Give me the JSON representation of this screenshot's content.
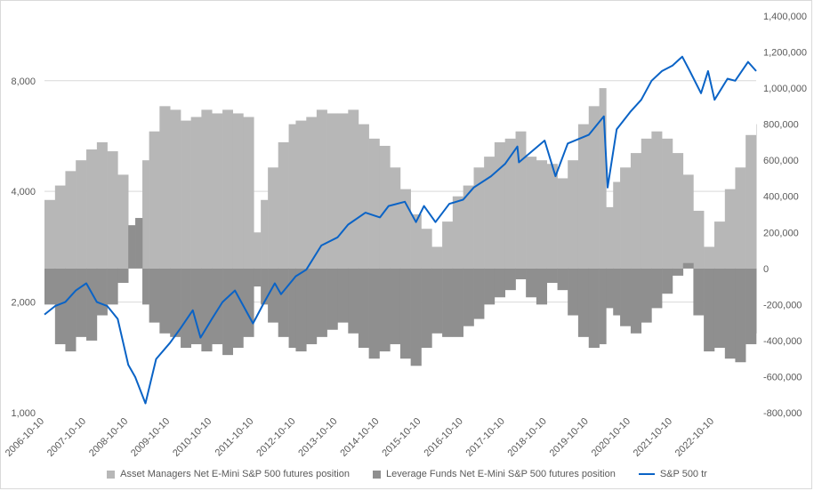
{
  "chart_data": {
    "type": "bar+line",
    "title": "",
    "xlabel": "",
    "ylabel": "",
    "y_left": {
      "scale": "log",
      "range": [
        1000,
        12000
      ],
      "ticks": [
        1000,
        2000,
        4000,
        8000
      ],
      "tick_labels": [
        "1,000",
        "2,000",
        "4,000",
        "8,000"
      ]
    },
    "y_right": {
      "range": [
        -800000,
        1400000
      ],
      "ticks": [
        -800000,
        -600000,
        -400000,
        -200000,
        0,
        200000,
        400000,
        600000,
        800000,
        1000000,
        1200000,
        1400000
      ],
      "tick_labels": [
        "-800,000",
        "-600,000",
        "-400,000",
        "-200,000",
        "0",
        "200,000",
        "400,000",
        "600,000",
        "800,000",
        "1,000,000",
        "1,200,000",
        "1,400,000"
      ]
    },
    "x_range": [
      "2006-10-10",
      "2023-10-10"
    ],
    "x_tick_labels": [
      "2006-10-10",
      "2007-10-10",
      "2008-10-10",
      "2009-10-10",
      "2010-10-10",
      "2011-10-10",
      "2012-10-10",
      "2013-10-10",
      "2014-10-10",
      "2015-10-10",
      "2016-10-10",
      "2017-10-10",
      "2018-10-10",
      "2019-10-10",
      "2020-10-10",
      "2021-10-10",
      "2022-10-10"
    ],
    "grid": "horizontal",
    "legend_position": "bottom",
    "series": [
      {
        "name": "Asset Managers Net E-Mini S&P 500 futures position",
        "kind": "bar",
        "axis": "right",
        "color": "#b7b7b7",
        "points": [
          [
            "2006-10-10",
            380000
          ],
          [
            "2007-01-10",
            460000
          ],
          [
            "2007-04-10",
            540000
          ],
          [
            "2007-07-10",
            600000
          ],
          [
            "2007-10-10",
            660000
          ],
          [
            "2008-01-10",
            700000
          ],
          [
            "2008-04-10",
            650000
          ],
          [
            "2008-07-10",
            520000
          ],
          [
            "2008-10-10",
            80000
          ],
          [
            "2008-12-10",
            50000
          ],
          [
            "2009-02-10",
            600000
          ],
          [
            "2009-04-10",
            760000
          ],
          [
            "2009-07-10",
            900000
          ],
          [
            "2009-10-10",
            880000
          ],
          [
            "2010-01-10",
            820000
          ],
          [
            "2010-04-10",
            840000
          ],
          [
            "2010-07-10",
            880000
          ],
          [
            "2010-10-10",
            860000
          ],
          [
            "2011-01-10",
            880000
          ],
          [
            "2011-04-10",
            860000
          ],
          [
            "2011-07-10",
            840000
          ],
          [
            "2011-10-10",
            200000
          ],
          [
            "2011-12-10",
            380000
          ],
          [
            "2012-02-10",
            560000
          ],
          [
            "2012-05-10",
            700000
          ],
          [
            "2012-08-10",
            800000
          ],
          [
            "2012-10-10",
            820000
          ],
          [
            "2013-01-10",
            840000
          ],
          [
            "2013-04-10",
            880000
          ],
          [
            "2013-07-10",
            860000
          ],
          [
            "2013-10-10",
            860000
          ],
          [
            "2014-01-10",
            880000
          ],
          [
            "2014-04-10",
            800000
          ],
          [
            "2014-07-10",
            720000
          ],
          [
            "2014-10-10",
            680000
          ],
          [
            "2015-01-10",
            560000
          ],
          [
            "2015-04-10",
            440000
          ],
          [
            "2015-07-10",
            300000
          ],
          [
            "2015-10-10",
            220000
          ],
          [
            "2016-01-10",
            120000
          ],
          [
            "2016-04-10",
            260000
          ],
          [
            "2016-07-10",
            400000
          ],
          [
            "2016-10-10",
            460000
          ],
          [
            "2017-01-10",
            560000
          ],
          [
            "2017-04-10",
            620000
          ],
          [
            "2017-07-10",
            700000
          ],
          [
            "2017-10-10",
            720000
          ],
          [
            "2018-01-10",
            760000
          ],
          [
            "2018-04-10",
            620000
          ],
          [
            "2018-07-10",
            600000
          ],
          [
            "2018-10-10",
            580000
          ],
          [
            "2019-01-10",
            500000
          ],
          [
            "2019-04-10",
            600000
          ],
          [
            "2019-07-10",
            800000
          ],
          [
            "2019-10-10",
            900000
          ],
          [
            "2020-01-10",
            1000000
          ],
          [
            "2020-03-10",
            340000
          ],
          [
            "2020-05-10",
            480000
          ],
          [
            "2020-07-10",
            560000
          ],
          [
            "2020-10-10",
            640000
          ],
          [
            "2021-01-10",
            720000
          ],
          [
            "2021-04-10",
            760000
          ],
          [
            "2021-07-10",
            720000
          ],
          [
            "2021-10-10",
            640000
          ],
          [
            "2022-01-10",
            520000
          ],
          [
            "2022-04-10",
            320000
          ],
          [
            "2022-07-10",
            120000
          ],
          [
            "2022-10-10",
            260000
          ],
          [
            "2023-01-10",
            440000
          ],
          [
            "2023-04-10",
            560000
          ],
          [
            "2023-07-10",
            740000
          ],
          [
            "2023-10-10",
            800000
          ]
        ]
      },
      {
        "name": "Leverage Funds Net E-Mini S&P 500 futures position",
        "kind": "bar",
        "axis": "right",
        "color": "#8f8f8f",
        "points": [
          [
            "2006-10-10",
            -200000
          ],
          [
            "2007-01-10",
            -420000
          ],
          [
            "2007-04-10",
            -460000
          ],
          [
            "2007-07-10",
            -380000
          ],
          [
            "2007-10-10",
            -400000
          ],
          [
            "2008-01-10",
            -260000
          ],
          [
            "2008-04-10",
            -200000
          ],
          [
            "2008-07-10",
            -80000
          ],
          [
            "2008-10-10",
            240000
          ],
          [
            "2008-12-10",
            280000
          ],
          [
            "2009-02-10",
            -200000
          ],
          [
            "2009-04-10",
            -300000
          ],
          [
            "2009-07-10",
            -360000
          ],
          [
            "2009-10-10",
            -380000
          ],
          [
            "2010-01-10",
            -440000
          ],
          [
            "2010-04-10",
            -420000
          ],
          [
            "2010-07-10",
            -460000
          ],
          [
            "2010-10-10",
            -420000
          ],
          [
            "2011-01-10",
            -480000
          ],
          [
            "2011-04-10",
            -440000
          ],
          [
            "2011-07-10",
            -380000
          ],
          [
            "2011-10-10",
            -100000
          ],
          [
            "2011-12-10",
            -200000
          ],
          [
            "2012-02-10",
            -300000
          ],
          [
            "2012-05-10",
            -380000
          ],
          [
            "2012-08-10",
            -440000
          ],
          [
            "2012-10-10",
            -460000
          ],
          [
            "2013-01-10",
            -420000
          ],
          [
            "2013-04-10",
            -380000
          ],
          [
            "2013-07-10",
            -340000
          ],
          [
            "2013-10-10",
            -300000
          ],
          [
            "2014-01-10",
            -360000
          ],
          [
            "2014-04-10",
            -440000
          ],
          [
            "2014-07-10",
            -500000
          ],
          [
            "2014-10-10",
            -460000
          ],
          [
            "2015-01-10",
            -420000
          ],
          [
            "2015-04-10",
            -500000
          ],
          [
            "2015-07-10",
            -540000
          ],
          [
            "2015-10-10",
            -440000
          ],
          [
            "2016-01-10",
            -360000
          ],
          [
            "2016-04-10",
            -380000
          ],
          [
            "2016-07-10",
            -380000
          ],
          [
            "2016-10-10",
            -320000
          ],
          [
            "2017-01-10",
            -280000
          ],
          [
            "2017-04-10",
            -200000
          ],
          [
            "2017-07-10",
            -160000
          ],
          [
            "2017-10-10",
            -120000
          ],
          [
            "2018-01-10",
            -60000
          ],
          [
            "2018-04-10",
            -160000
          ],
          [
            "2018-07-10",
            -200000
          ],
          [
            "2018-10-10",
            -80000
          ],
          [
            "2019-01-10",
            -120000
          ],
          [
            "2019-04-10",
            -260000
          ],
          [
            "2019-07-10",
            -380000
          ],
          [
            "2019-10-10",
            -440000
          ],
          [
            "2020-01-10",
            -420000
          ],
          [
            "2020-03-10",
            -220000
          ],
          [
            "2020-05-10",
            -260000
          ],
          [
            "2020-07-10",
            -320000
          ],
          [
            "2020-10-10",
            -360000
          ],
          [
            "2021-01-10",
            -300000
          ],
          [
            "2021-04-10",
            -220000
          ],
          [
            "2021-07-10",
            -140000
          ],
          [
            "2021-10-10",
            -40000
          ],
          [
            "2022-01-10",
            30000
          ],
          [
            "2022-04-10",
            -260000
          ],
          [
            "2022-07-10",
            -460000
          ],
          [
            "2022-10-10",
            -440000
          ],
          [
            "2023-01-10",
            -500000
          ],
          [
            "2023-04-10",
            -520000
          ],
          [
            "2023-07-10",
            -420000
          ],
          [
            "2023-10-10",
            -360000
          ]
        ]
      },
      {
        "name": "S&P 500 tr",
        "kind": "line",
        "axis": "left",
        "color": "#0a63c6",
        "points": [
          [
            "2006-10-10",
            1850
          ],
          [
            "2007-01-10",
            1950
          ],
          [
            "2007-04-10",
            2000
          ],
          [
            "2007-07-10",
            2150
          ],
          [
            "2007-10-10",
            2250
          ],
          [
            "2008-01-10",
            2000
          ],
          [
            "2008-04-10",
            1950
          ],
          [
            "2008-07-10",
            1800
          ],
          [
            "2008-10-10",
            1350
          ],
          [
            "2008-12-10",
            1250
          ],
          [
            "2009-03-09",
            1060
          ],
          [
            "2009-06-10",
            1400
          ],
          [
            "2009-10-10",
            1550
          ],
          [
            "2010-01-10",
            1700
          ],
          [
            "2010-04-26",
            1900
          ],
          [
            "2010-07-02",
            1600
          ],
          [
            "2010-10-10",
            1800
          ],
          [
            "2011-01-10",
            2000
          ],
          [
            "2011-04-29",
            2150
          ],
          [
            "2011-10-03",
            1750
          ],
          [
            "2012-01-10",
            2000
          ],
          [
            "2012-04-10",
            2250
          ],
          [
            "2012-06-04",
            2100
          ],
          [
            "2012-10-10",
            2350
          ],
          [
            "2013-01-10",
            2450
          ],
          [
            "2013-05-21",
            2850
          ],
          [
            "2013-10-10",
            3000
          ],
          [
            "2014-01-10",
            3250
          ],
          [
            "2014-06-10",
            3500
          ],
          [
            "2014-10-15",
            3400
          ],
          [
            "2014-12-29",
            3650
          ],
          [
            "2015-05-20",
            3750
          ],
          [
            "2015-08-25",
            3300
          ],
          [
            "2015-11-03",
            3650
          ],
          [
            "2016-02-11",
            3300
          ],
          [
            "2016-06-10",
            3700
          ],
          [
            "2016-10-10",
            3800
          ],
          [
            "2017-01-10",
            4100
          ],
          [
            "2017-06-10",
            4400
          ],
          [
            "2017-10-10",
            4750
          ],
          [
            "2018-01-26",
            5300
          ],
          [
            "2018-02-08",
            4800
          ],
          [
            "2018-09-20",
            5500
          ],
          [
            "2018-12-24",
            4400
          ],
          [
            "2019-04-10",
            5400
          ],
          [
            "2019-10-10",
            5700
          ],
          [
            "2020-02-19",
            6400
          ],
          [
            "2020-03-23",
            4100
          ],
          [
            "2020-06-10",
            5900
          ],
          [
            "2020-10-10",
            6600
          ],
          [
            "2021-01-10",
            7100
          ],
          [
            "2021-04-10",
            8000
          ],
          [
            "2021-07-10",
            8500
          ],
          [
            "2021-10-10",
            8800
          ],
          [
            "2022-01-03",
            9300
          ],
          [
            "2022-03-10",
            8500
          ],
          [
            "2022-06-16",
            7400
          ],
          [
            "2022-08-16",
            8500
          ],
          [
            "2022-10-12",
            7100
          ],
          [
            "2023-02-02",
            8100
          ],
          [
            "2023-04-10",
            8000
          ],
          [
            "2023-07-31",
            9000
          ],
          [
            "2023-10-10",
            8500
          ]
        ]
      }
    ]
  }
}
